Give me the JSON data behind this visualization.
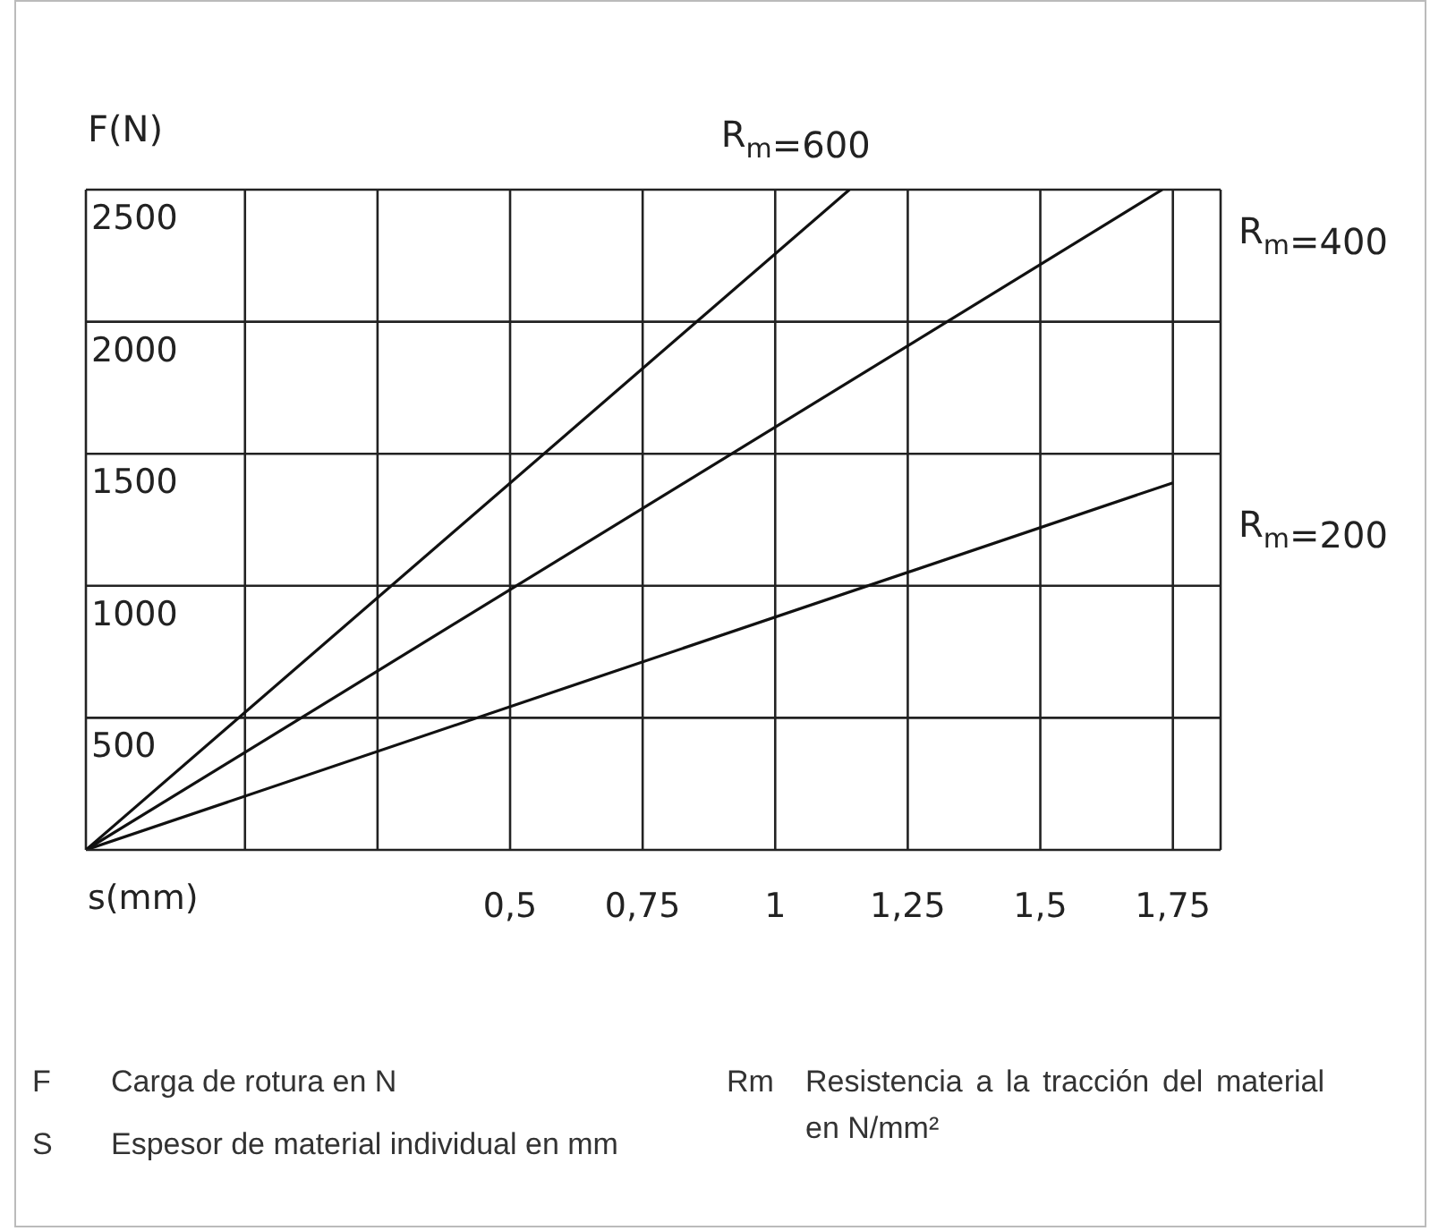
{
  "chart_data": {
    "type": "line",
    "xlabel": "s(mm)",
    "ylabel": "F(N)",
    "xlim": [
      -0.3,
      1.84
    ],
    "xticks": [
      {
        "value": 0,
        "label": null
      },
      {
        "value": 0.25,
        "label": null
      },
      {
        "value": 0.5,
        "label": "0,5"
      },
      {
        "value": 0.75,
        "label": "0,75"
      },
      {
        "value": 1,
        "label": "1"
      },
      {
        "value": 1.25,
        "label": "1,25"
      },
      {
        "value": 1.5,
        "label": "1,5"
      },
      {
        "value": 1.75,
        "label": "1,75"
      }
    ],
    "ylim": [
      0,
      2500
    ],
    "yticks": [
      {
        "value": 0,
        "label": null
      },
      500,
      1000,
      1500,
      2000,
      2500
    ],
    "grid": true,
    "series": [
      {
        "name": "R$_{m}$=600",
        "color": "#111111",
        "x": [
          -0.3,
          1.14
        ],
        "values": [
          0,
          2500
        ]
      },
      {
        "name": "R$_{m}$=400",
        "color": "#111111",
        "x": [
          -0.3,
          1.73
        ],
        "values": [
          0,
          2500
        ]
      },
      {
        "name": "R$_{m}$=200",
        "color": "#111111",
        "x": [
          -0.3,
          1.75
        ],
        "values": [
          0,
          1390
        ]
      }
    ],
    "annotations": [
      "F Carga de rotura en N",
      "S Espesor de material individual en mm",
      "Rm Resistencia a la tracción del material en N/mm²"
    ]
  }
}
